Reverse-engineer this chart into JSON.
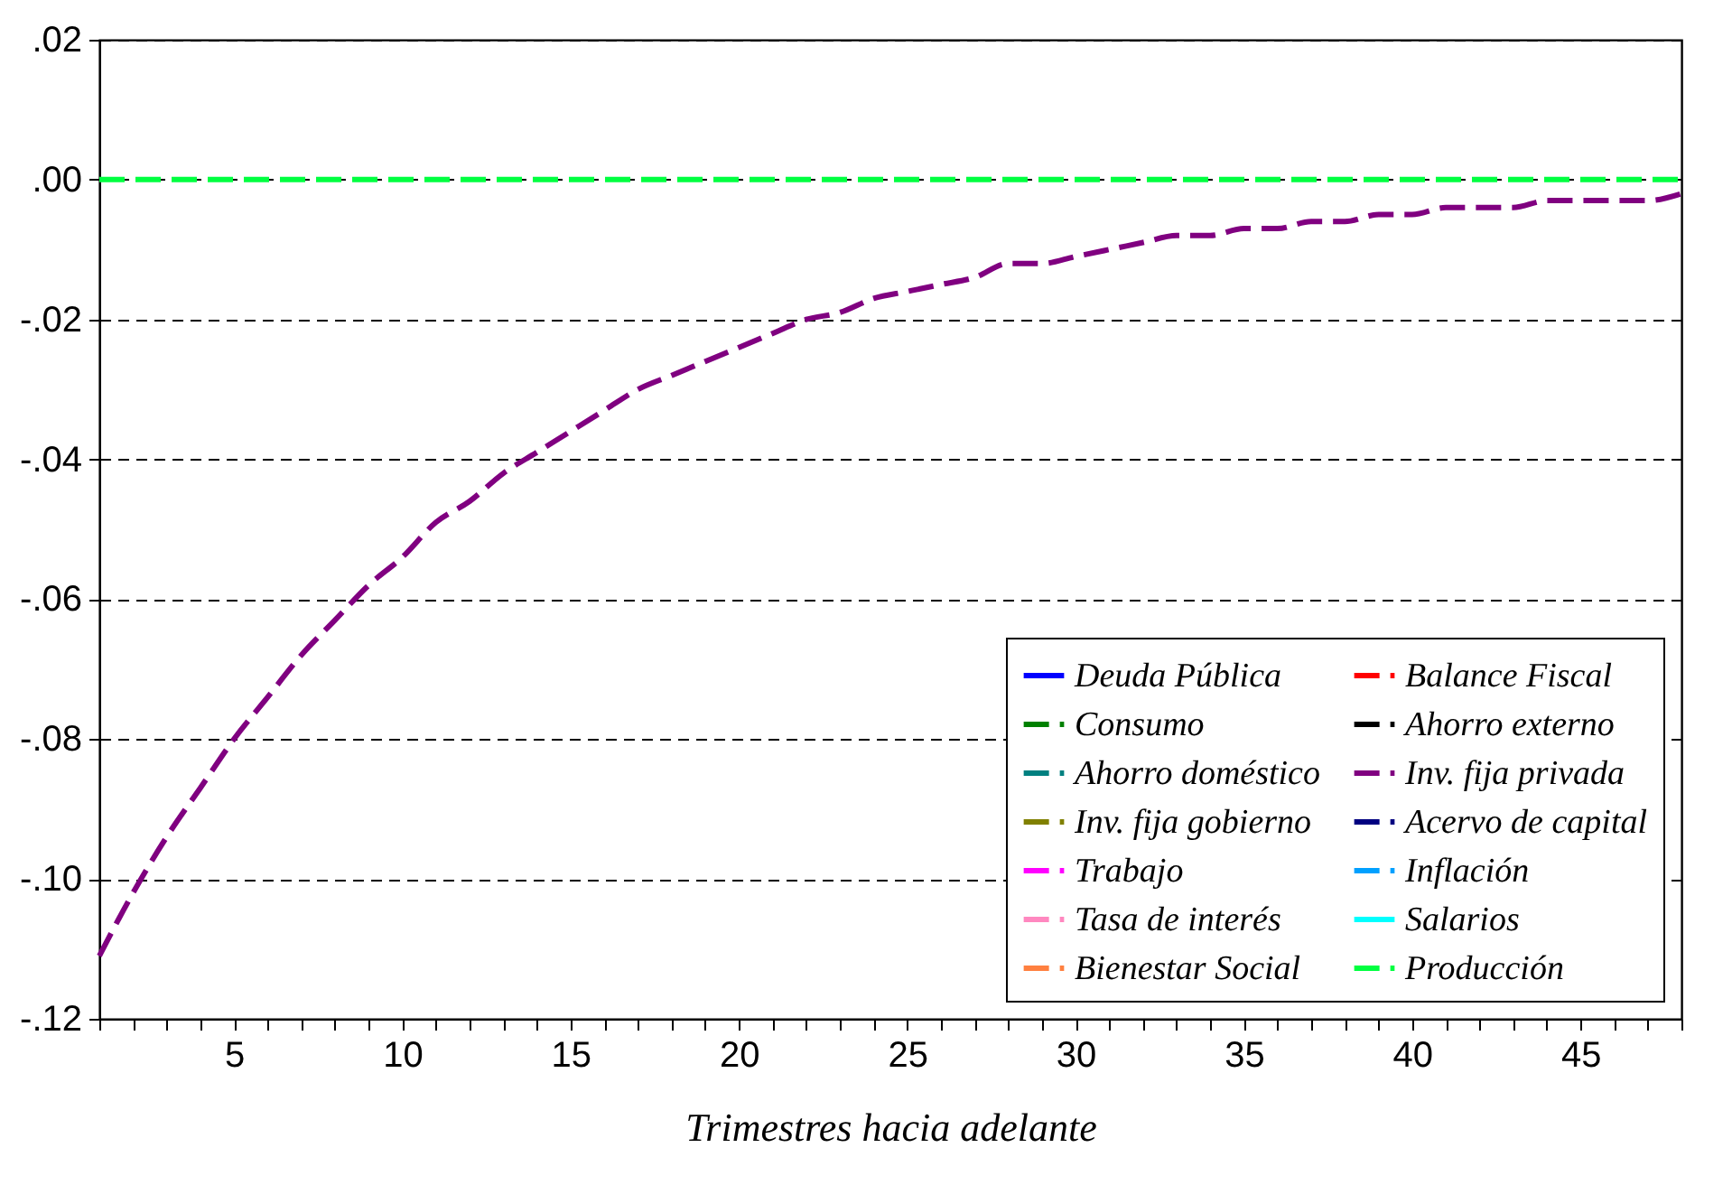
{
  "chart_data": {
    "type": "line",
    "xlabel": "Trimestres hacia adelante",
    "x": [
      1,
      2,
      3,
      4,
      5,
      6,
      7,
      8,
      9,
      10,
      11,
      12,
      13,
      14,
      15,
      16,
      17,
      18,
      19,
      20,
      21,
      22,
      23,
      24,
      25,
      26,
      27,
      28,
      29,
      30,
      31,
      32,
      33,
      34,
      35,
      36,
      37,
      38,
      39,
      40,
      41,
      42,
      43,
      44,
      45,
      46,
      47,
      48
    ],
    "xlim": [
      1,
      48
    ],
    "xticks": [
      {
        "value": 1,
        "label": null
      },
      {
        "value": 2,
        "label": null
      },
      {
        "value": 3,
        "label": null
      },
      {
        "value": 4,
        "label": null
      },
      5,
      {
        "value": 6,
        "label": null
      },
      {
        "value": 7,
        "label": null
      },
      {
        "value": 8,
        "label": null
      },
      {
        "value": 9,
        "label": null
      },
      10,
      {
        "value": 11,
        "label": null
      },
      {
        "value": 12,
        "label": null
      },
      {
        "value": 13,
        "label": null
      },
      {
        "value": 14,
        "label": null
      },
      15,
      {
        "value": 16,
        "label": null
      },
      {
        "value": 17,
        "label": null
      },
      {
        "value": 18,
        "label": null
      },
      {
        "value": 19,
        "label": null
      },
      20,
      {
        "value": 21,
        "label": null
      },
      {
        "value": 22,
        "label": null
      },
      {
        "value": 23,
        "label": null
      },
      {
        "value": 24,
        "label": null
      },
      25,
      {
        "value": 26,
        "label": null
      },
      {
        "value": 27,
        "label": null
      },
      {
        "value": 28,
        "label": null
      },
      {
        "value": 29,
        "label": null
      },
      30,
      {
        "value": 31,
        "label": null
      },
      {
        "value": 32,
        "label": null
      },
      {
        "value": 33,
        "label": null
      },
      {
        "value": 34,
        "label": null
      },
      35,
      {
        "value": 36,
        "label": null
      },
      {
        "value": 37,
        "label": null
      },
      {
        "value": 38,
        "label": null
      },
      {
        "value": 39,
        "label": null
      },
      40,
      {
        "value": 41,
        "label": null
      },
      {
        "value": 42,
        "label": null
      },
      {
        "value": 43,
        "label": null
      },
      {
        "value": 44,
        "label": null
      },
      45,
      {
        "value": 46,
        "label": null
      },
      {
        "value": 47,
        "label": null
      },
      {
        "value": 48,
        "label": null
      }
    ],
    "ylim": [
      -0.12,
      0.02
    ],
    "yticks": [
      {
        "value": -0.12,
        "label": "-.12"
      },
      {
        "value": -0.1,
        "label": "-.10"
      },
      {
        "value": -0.08,
        "label": "-.08"
      },
      {
        "value": -0.06,
        "label": "-.06"
      },
      {
        "value": -0.04,
        "label": "-.04"
      },
      {
        "value": -0.02,
        "label": "-.02"
      },
      {
        "value": 0,
        "label": ".00"
      },
      {
        "value": 0.02,
        "label": ".02"
      }
    ],
    "grid": "y",
    "legend": "bottom right",
    "series": [
      {
        "name": "Deuda Pública",
        "color": "#0000ff",
        "line_style": "solid",
        "values": [
          null,
          null,
          null,
          null,
          null,
          null,
          null,
          null,
          null,
          null,
          null,
          null,
          null,
          null,
          null,
          null,
          null,
          null,
          null,
          null,
          null,
          null,
          null,
          null,
          null,
          null,
          null,
          null,
          null,
          null,
          null,
          null,
          null,
          null,
          null,
          null,
          null,
          null,
          null,
          null,
          null,
          null,
          null,
          null,
          null,
          null,
          null,
          null
        ]
      },
      {
        "name": "Balance Fiscal",
        "color": "#ff0000",
        "line_style": "dashed",
        "values": [
          null,
          null,
          null,
          null,
          null,
          null,
          null,
          null,
          null,
          null,
          null,
          null,
          null,
          null,
          null,
          null,
          null,
          null,
          null,
          null,
          null,
          null,
          null,
          null,
          null,
          null,
          null,
          null,
          null,
          null,
          null,
          null,
          null,
          null,
          null,
          null,
          null,
          null,
          null,
          null,
          null,
          null,
          null,
          null,
          null,
          null,
          null,
          null
        ]
      },
      {
        "name": "Consumo",
        "color": "#008000",
        "line_style": "dashed",
        "values": [
          null,
          null,
          null,
          null,
          null,
          null,
          null,
          null,
          null,
          null,
          null,
          null,
          null,
          null,
          null,
          null,
          null,
          null,
          null,
          null,
          null,
          null,
          null,
          null,
          null,
          null,
          null,
          null,
          null,
          null,
          null,
          null,
          null,
          null,
          null,
          null,
          null,
          null,
          null,
          null,
          null,
          null,
          null,
          null,
          null,
          null,
          null,
          null
        ]
      },
      {
        "name": "Ahorro externo",
        "color": "#000000",
        "line_style": "dashed",
        "values": [
          null,
          null,
          null,
          null,
          null,
          null,
          null,
          null,
          null,
          null,
          null,
          null,
          null,
          null,
          null,
          null,
          null,
          null,
          null,
          null,
          null,
          null,
          null,
          null,
          null,
          null,
          null,
          null,
          null,
          null,
          null,
          null,
          null,
          null,
          null,
          null,
          null,
          null,
          null,
          null,
          null,
          null,
          null,
          null,
          null,
          null,
          null,
          null
        ]
      },
      {
        "name": "Ahorro doméstico",
        "color": "#008080",
        "line_style": "dashed",
        "values": [
          null,
          null,
          null,
          null,
          null,
          null,
          null,
          null,
          null,
          null,
          null,
          null,
          null,
          null,
          null,
          null,
          null,
          null,
          null,
          null,
          null,
          null,
          null,
          null,
          null,
          null,
          null,
          null,
          null,
          null,
          null,
          null,
          null,
          null,
          null,
          null,
          null,
          null,
          null,
          null,
          null,
          null,
          null,
          null,
          null,
          null,
          null,
          null
        ]
      },
      {
        "name": "Inv. fija privada",
        "color": "#800080",
        "line_style": "dashed",
        "values": [
          -0.111,
          -0.102,
          -0.094,
          -0.087,
          -0.08,
          -0.074,
          -0.068,
          -0.063,
          -0.058,
          -0.054,
          -0.049,
          -0.046,
          -0.042,
          -0.039,
          -0.036,
          -0.033,
          -0.03,
          -0.028,
          -0.026,
          -0.024,
          -0.022,
          -0.02,
          -0.019,
          -0.017,
          -0.016,
          -0.015,
          -0.014,
          -0.012,
          -0.012,
          -0.011,
          -0.01,
          -0.009,
          -0.008,
          -0.008,
          -0.007,
          -0.007,
          -0.006,
          -0.006,
          -0.005,
          -0.005,
          -0.004,
          -0.004,
          -0.004,
          -0.003,
          -0.003,
          -0.003,
          -0.003,
          -0.002
        ]
      },
      {
        "name": "Inv. fija gobierno",
        "color": "#808000",
        "line_style": "dashed",
        "values": [
          null,
          null,
          null,
          null,
          null,
          null,
          null,
          null,
          null,
          null,
          null,
          null,
          null,
          null,
          null,
          null,
          null,
          null,
          null,
          null,
          null,
          null,
          null,
          null,
          null,
          null,
          null,
          null,
          null,
          null,
          null,
          null,
          null,
          null,
          null,
          null,
          null,
          null,
          null,
          null,
          null,
          null,
          null,
          null,
          null,
          null,
          null,
          null
        ]
      },
      {
        "name": "Acervo de capital",
        "color": "#000080",
        "line_style": "dashed",
        "values": [
          null,
          null,
          null,
          null,
          null,
          null,
          null,
          null,
          null,
          null,
          null,
          null,
          null,
          null,
          null,
          null,
          null,
          null,
          null,
          null,
          null,
          null,
          null,
          null,
          null,
          null,
          null,
          null,
          null,
          null,
          null,
          null,
          null,
          null,
          null,
          null,
          null,
          null,
          null,
          null,
          null,
          null,
          null,
          null,
          null,
          null,
          null,
          null
        ]
      },
      {
        "name": "Trabajo",
        "color": "#ff00ff",
        "line_style": "dashed",
        "values": [
          null,
          null,
          null,
          null,
          null,
          null,
          null,
          null,
          null,
          null,
          null,
          null,
          null,
          null,
          null,
          null,
          null,
          null,
          null,
          null,
          null,
          null,
          null,
          null,
          null,
          null,
          null,
          null,
          null,
          null,
          null,
          null,
          null,
          null,
          null,
          null,
          null,
          null,
          null,
          null,
          null,
          null,
          null,
          null,
          null,
          null,
          null,
          null
        ]
      },
      {
        "name": "Inflación",
        "color": "#00a0ff",
        "line_style": "dashed",
        "values": [
          null,
          null,
          null,
          null,
          null,
          null,
          null,
          null,
          null,
          null,
          null,
          null,
          null,
          null,
          null,
          null,
          null,
          null,
          null,
          null,
          null,
          null,
          null,
          null,
          null,
          null,
          null,
          null,
          null,
          null,
          null,
          null,
          null,
          null,
          null,
          null,
          null,
          null,
          null,
          null,
          null,
          null,
          null,
          null,
          null,
          null,
          null,
          null
        ]
      },
      {
        "name": "Tasa de interés",
        "color": "#ff88c0",
        "line_style": "dashed",
        "values": [
          null,
          null,
          null,
          null,
          null,
          null,
          null,
          null,
          null,
          null,
          null,
          null,
          null,
          null,
          null,
          null,
          null,
          null,
          null,
          null,
          null,
          null,
          null,
          null,
          null,
          null,
          null,
          null,
          null,
          null,
          null,
          null,
          null,
          null,
          null,
          null,
          null,
          null,
          null,
          null,
          null,
          null,
          null,
          null,
          null,
          null,
          null,
          null
        ]
      },
      {
        "name": "Salarios",
        "color": "#00ffff",
        "line_style": "solid",
        "values": [
          null,
          null,
          null,
          null,
          null,
          null,
          null,
          null,
          null,
          null,
          null,
          null,
          null,
          null,
          null,
          null,
          null,
          null,
          null,
          null,
          null,
          null,
          null,
          null,
          null,
          null,
          null,
          null,
          null,
          null,
          null,
          null,
          null,
          null,
          null,
          null,
          null,
          null,
          null,
          null,
          null,
          null,
          null,
          null,
          null,
          null,
          null,
          null
        ]
      },
      {
        "name": "Bienestar Social",
        "color": "#ff8040",
        "line_style": "dashed",
        "values": [
          null,
          null,
          null,
          null,
          null,
          null,
          null,
          null,
          null,
          null,
          null,
          null,
          null,
          null,
          null,
          null,
          null,
          null,
          null,
          null,
          null,
          null,
          null,
          null,
          null,
          null,
          null,
          null,
          null,
          null,
          null,
          null,
          null,
          null,
          null,
          null,
          null,
          null,
          null,
          null,
          null,
          null,
          null,
          null,
          null,
          null,
          null,
          null
        ]
      },
      {
        "name": "Producción",
        "color": "#00ff40",
        "line_style": "dashed",
        "values": [
          0,
          0,
          0,
          0,
          0,
          0,
          0,
          0,
          0,
          0,
          0,
          0,
          0,
          0,
          0,
          0,
          0,
          0,
          0,
          0,
          0,
          0,
          0,
          0,
          0,
          0,
          0,
          0,
          0,
          0,
          0,
          0,
          0,
          0,
          0,
          0,
          0,
          0,
          0,
          0,
          0,
          0,
          0,
          0,
          0,
          0,
          0,
          0
        ]
      }
    ]
  }
}
